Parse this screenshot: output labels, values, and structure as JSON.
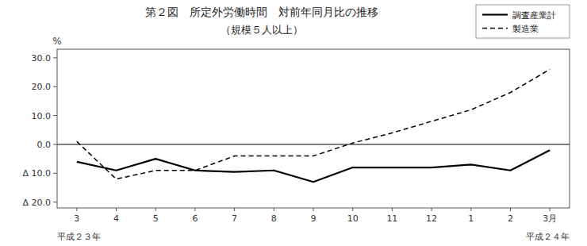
{
  "chart_data": {
    "type": "line",
    "title": "第２図　所定外労働時間　対前年同月比の推移",
    "subtitle": "（規模５人以上）",
    "y_label": "%",
    "annotations": [
      "平成２３年",
      "平成２４年"
    ],
    "categories": [
      "3",
      "4",
      "5",
      "6",
      "7",
      "8",
      "9",
      "10",
      "11",
      "12",
      "1",
      "2",
      "3月"
    ],
    "series": [
      {
        "name": "調査産業計",
        "color": "#000000",
        "line_style": "solid",
        "values": [
          -6.0,
          -9.0,
          -5.0,
          -9.0,
          -9.5,
          -9.0,
          -13.0,
          -8.0,
          -8.0,
          -8.0,
          -7.0,
          -9.0,
          -2.0
        ]
      },
      {
        "name": "製造業",
        "color": "#000000",
        "line_style": "dashed",
        "values": [
          1.0,
          -12.0,
          -9.0,
          -9.0,
          -4.0,
          -4.0,
          -4.0,
          0.5,
          4.0,
          8.0,
          12.0,
          18.0,
          26.0
        ]
      }
    ],
    "ylim": [
      -22,
      33
    ],
    "yticks": [
      {
        "value": -20.0,
        "label": "Δ 20.0"
      },
      {
        "value": -10.0,
        "label": "Δ 10.0"
      },
      {
        "value": 0.0,
        "label": "0.0"
      },
      {
        "value": 10.0,
        "label": "10.0"
      },
      {
        "value": 20.0,
        "label": "20.0"
      },
      {
        "value": 30.0,
        "label": "30.0"
      }
    ],
    "grid": false,
    "legend": "upper right"
  }
}
